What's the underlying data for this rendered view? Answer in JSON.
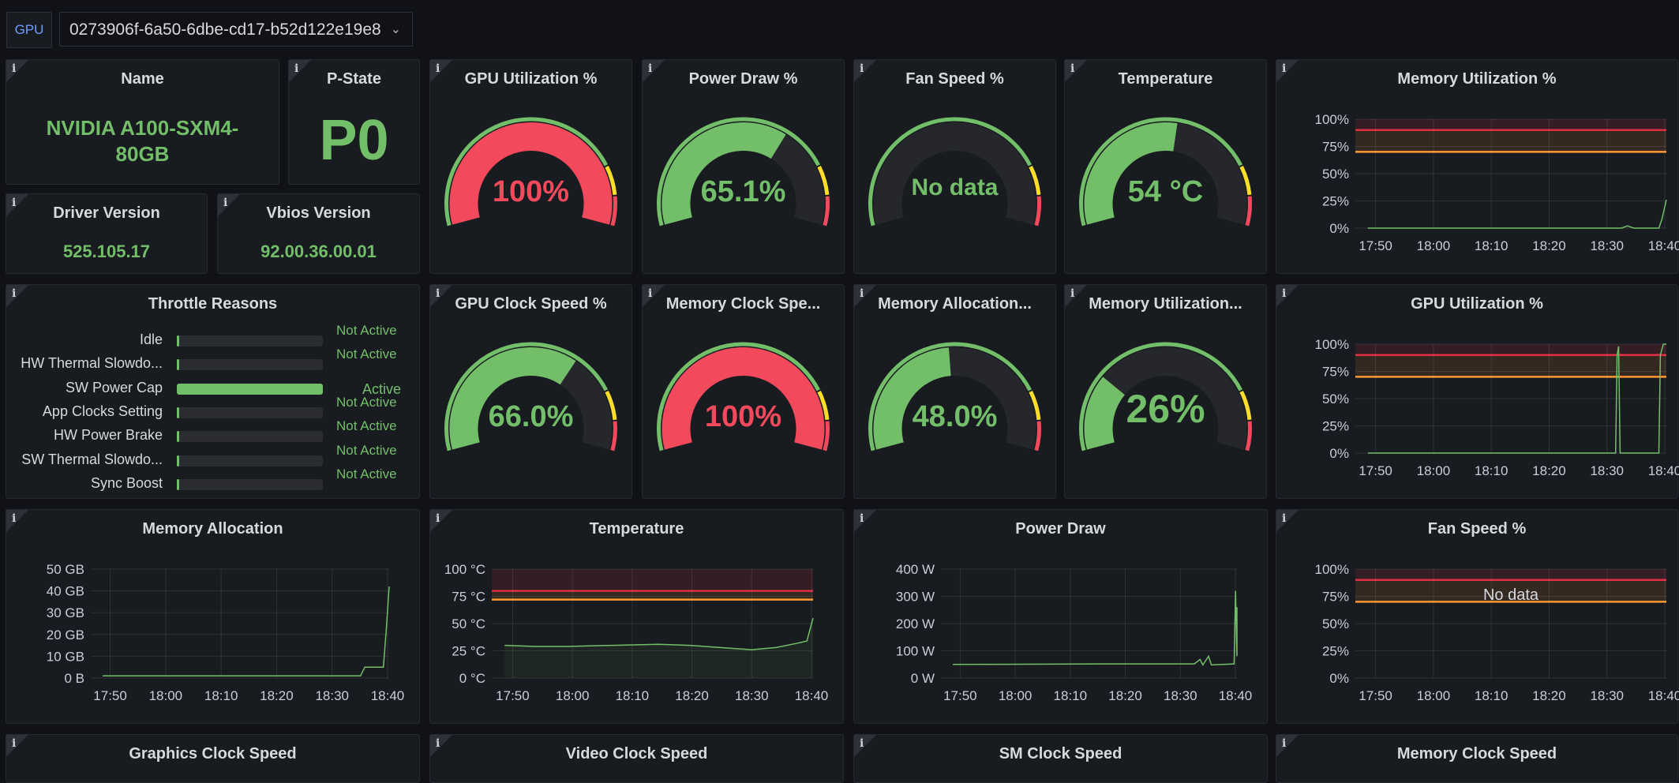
{
  "variable": {
    "label": "GPU",
    "value": "0273906f-6a50-6dbe-cd17-b52d122e19e8",
    "chevron": "chevron-down-icon"
  },
  "info_glyph": "i",
  "colors": {
    "green": "#73bf69",
    "red": "#f2495c",
    "yellow": "#fade2a",
    "orange": "#ff9830",
    "dark_red": "#e02f44",
    "bg": "#111217",
    "panel": "#181b1f"
  },
  "stats": {
    "name": {
      "title": "Name",
      "value": "NVIDIA A100-SXM4-80GB"
    },
    "pstate": {
      "title": "P-State",
      "value": "P0"
    },
    "driver": {
      "title": "Driver Version",
      "value": "525.105.17"
    },
    "vbios": {
      "title": "Vbios Version",
      "value": "92.00.36.00.01"
    }
  },
  "throttle": {
    "title": "Throttle Reasons",
    "rows": [
      {
        "label": "Idle",
        "value": "Not Active",
        "fill": 0.0
      },
      {
        "label": "HW Thermal Slowdo...",
        "value": "Not Active",
        "fill": 0.0
      },
      {
        "label": "SW Power Cap",
        "value": "Active",
        "fill": 1.0
      },
      {
        "label": "App Clocks Setting",
        "value": "Not Active",
        "fill": 0.0
      },
      {
        "label": "HW Power Brake",
        "value": "Not Active",
        "fill": 0.0
      },
      {
        "label": "SW Thermal Slowdo...",
        "value": "Not Active",
        "fill": 0.0
      },
      {
        "label": "Sync Boost",
        "value": "Not Active",
        "fill": 0.0
      }
    ]
  },
  "gauges": [
    {
      "title": "GPU Utilization %",
      "text": "100%",
      "value": 100,
      "color": "red"
    },
    {
      "title": "Power Draw %",
      "text": "65.1%",
      "value": 65.1,
      "color": "green"
    },
    {
      "title": "Fan Speed %",
      "text": "No data",
      "value": null,
      "color": "green"
    },
    {
      "title": "Temperature",
      "text": "54 °C",
      "value": 54,
      "color": "green"
    },
    {
      "title": "GPU Clock Speed %",
      "text": "66.0%",
      "value": 66.0,
      "color": "green"
    },
    {
      "title": "Memory Clock Spe...",
      "text": "100%",
      "value": 100,
      "color": "red"
    },
    {
      "title": "Memory Allocation...",
      "text": "48.0%",
      "value": 48.0,
      "color": "green"
    },
    {
      "title": "Memory Utilization...",
      "text": "26%",
      "value": 26,
      "color": "green"
    }
  ],
  "graphs": {
    "mem_util": {
      "title": "Memory Utilization %",
      "yticks": [
        "100%",
        "75%",
        "50%",
        "25%",
        "0%"
      ],
      "xticks": [
        "17:50",
        "18:00",
        "18:10",
        "18:20",
        "18:30",
        "18:40"
      ]
    },
    "gpu_util": {
      "title": "GPU Utilization %",
      "yticks": [
        "100%",
        "75%",
        "50%",
        "25%",
        "0%"
      ],
      "xticks": [
        "17:50",
        "18:00",
        "18:10",
        "18:20",
        "18:30",
        "18:40"
      ]
    },
    "mem_alloc": {
      "title": "Memory Allocation",
      "yticks": [
        "50 GB",
        "40 GB",
        "30 GB",
        "20 GB",
        "10 GB",
        "0 B"
      ],
      "xticks": [
        "17:50",
        "18:00",
        "18:10",
        "18:20",
        "18:30",
        "18:40"
      ]
    },
    "temperature": {
      "title": "Temperature",
      "yticks": [
        "100 °C",
        "75 °C",
        "50 °C",
        "25 °C",
        "0 °C"
      ],
      "xticks": [
        "17:50",
        "18:00",
        "18:10",
        "18:20",
        "18:30",
        "18:40"
      ]
    },
    "power_draw": {
      "title": "Power Draw",
      "yticks": [
        "400 W",
        "300 W",
        "200 W",
        "100 W",
        "0 W"
      ],
      "xticks": [
        "17:50",
        "18:00",
        "18:10",
        "18:20",
        "18:30",
        "18:40"
      ]
    },
    "fan_speed": {
      "title": "Fan Speed %",
      "yticks": [
        "100%",
        "75%",
        "50%",
        "25%",
        "0%"
      ],
      "xticks": [
        "17:50",
        "18:00",
        "18:10",
        "18:20",
        "18:30",
        "18:40"
      ],
      "no_data": "No data"
    }
  },
  "bottom_titles": [
    "Graphics Clock Speed",
    "Video Clock Speed",
    "SM Clock Speed",
    "Memory Clock Speed"
  ]
}
